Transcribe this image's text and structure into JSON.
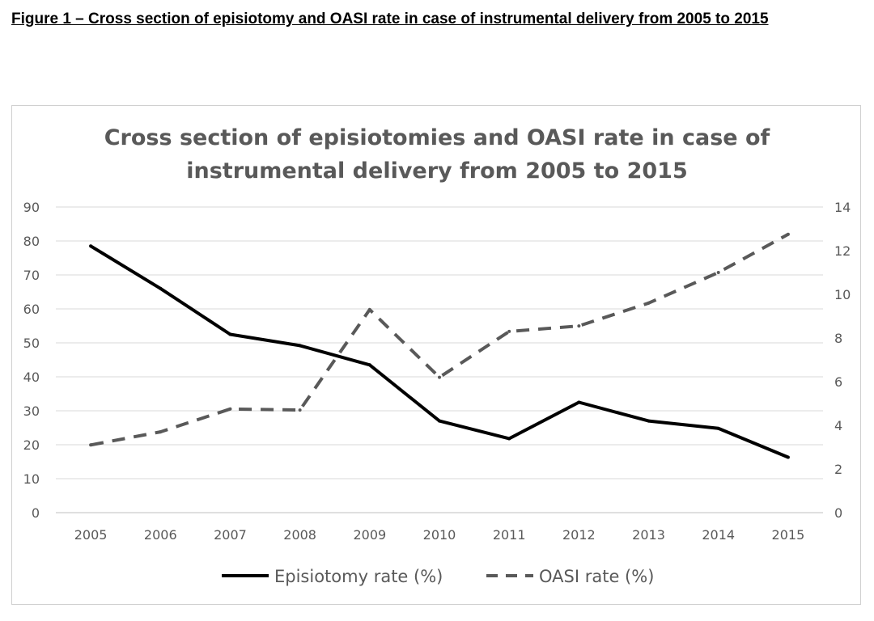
{
  "caption": "Figure 1 – Cross section of episiotomy and OASI rate in case of instrumental delivery from 2005 to 2015",
  "chart_data": {
    "type": "line",
    "title_lines": [
      "Cross section of episiotomies and OASI rate in case of",
      "instrumental delivery from 2005 to 2015"
    ],
    "categories": [
      "2005",
      "2006",
      "2007",
      "2008",
      "2009",
      "2010",
      "2011",
      "2012",
      "2013",
      "2014",
      "2015"
    ],
    "y_left": {
      "min": 0,
      "max": 90,
      "step": 10,
      "ticks": [
        "0",
        "10",
        "20",
        "30",
        "40",
        "50",
        "60",
        "70",
        "80",
        "90"
      ]
    },
    "y_right": {
      "min": 0,
      "max": 14,
      "step": 2,
      "ticks": [
        "0",
        "2",
        "4",
        "6",
        "8",
        "10",
        "12",
        "14"
      ]
    },
    "series": [
      {
        "name": "Episiotomy rate (%)",
        "axis": "left",
        "style": "solid",
        "color": "#000000",
        "values": [
          78.5,
          66,
          52.5,
          49.2,
          43.5,
          27,
          21.8,
          32.5,
          27,
          24.8,
          16.3
        ]
      },
      {
        "name": "OASI rate (%)",
        "axis": "right",
        "style": "dashed",
        "color": "#595959",
        "values": [
          3.1,
          3.7,
          4.75,
          4.7,
          9.3,
          6.2,
          8.3,
          8.55,
          9.6,
          11,
          12.75
        ]
      }
    ],
    "grid": true,
    "legend": "bottom"
  }
}
